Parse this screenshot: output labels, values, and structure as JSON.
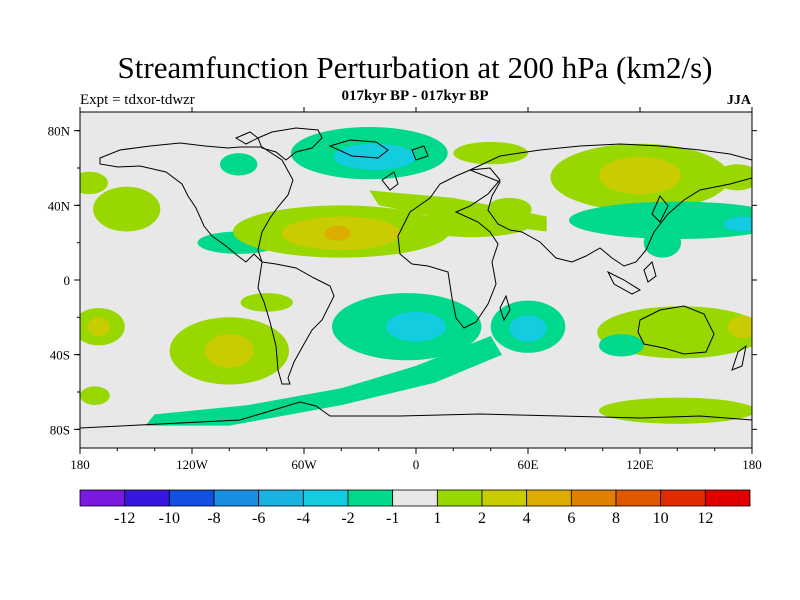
{
  "header": {
    "title": "Streamfunction Perturbation at 200 hPa (km2/s)",
    "subtitle": "017kyr BP - 017kyr BP",
    "experiment": "Expt = tdxor-tdwzr",
    "season": "JJA"
  },
  "chart_data": {
    "type": "heatmap",
    "projection": "equirectangular world map",
    "x": {
      "range": [
        -180,
        180
      ],
      "ticks": [
        -180,
        -120,
        -60,
        0,
        60,
        120,
        180
      ],
      "tick_labels": [
        "180",
        "120W",
        "60W",
        "0",
        "60E",
        "120E",
        "180"
      ]
    },
    "y": {
      "range": [
        -90,
        90
      ],
      "ticks": [
        80,
        40,
        0,
        -40,
        -80
      ],
      "tick_labels": [
        "80N",
        "40N",
        "0",
        "40S",
        "80S"
      ]
    },
    "colorbar": {
      "boundaries": [
        -12,
        -10,
        -8,
        -6,
        -4,
        -2,
        -1,
        1,
        2,
        4,
        6,
        8,
        10,
        12
      ],
      "labels": [
        "-12",
        "-10",
        "-8",
        "-6",
        "-4",
        "-2",
        "-1",
        "1",
        "2",
        "4",
        "6",
        "8",
        "10",
        "12"
      ],
      "colors": [
        "#7a1ae0",
        "#3816e0",
        "#1450e0",
        "#1a8ee0",
        "#1ab2e0",
        "#14cce0",
        "#00d88c",
        "#e8e8e8",
        "#98d800",
        "#c8cc00",
        "#dcac00",
        "#e08000",
        "#e05800",
        "#e02c00",
        "#e00000"
      ]
    },
    "regions": [
      {
        "level": 1,
        "lon": -155,
        "lat": 38,
        "rx": 18,
        "ry": 12
      },
      {
        "level": 1,
        "lon": -175,
        "lat": 52,
        "rx": 10,
        "ry": 6
      },
      {
        "level": 0,
        "lon": -170,
        "lat": 35,
        "rx": 10,
        "ry": 8
      },
      {
        "level": -1,
        "lon": -95,
        "lat": 20,
        "rx": 22,
        "ry": 6
      },
      {
        "level": 1,
        "lon": -40,
        "lat": 26,
        "rx": 58,
        "ry": 14
      },
      {
        "level": 2,
        "lon": -40,
        "lat": 25,
        "rx": 32,
        "ry": 9
      },
      {
        "level": 3,
        "lon": -42,
        "lat": 25,
        "rx": 7,
        "ry": 4
      },
      {
        "level": -1,
        "lon": -25,
        "lat": 68,
        "rx": 42,
        "ry": 14
      },
      {
        "level": -2,
        "lon": -22,
        "lat": 66,
        "rx": 22,
        "ry": 7
      },
      {
        "level": -1,
        "lon": -95,
        "lat": 62,
        "rx": 10,
        "ry": 6
      },
      {
        "level": 1,
        "lon": 40,
        "lat": 68,
        "rx": 20,
        "ry": 6
      },
      {
        "level": 1,
        "lon": 30,
        "lat": 30,
        "rx": 32,
        "ry": 7
      },
      {
        "level": 1,
        "lon": 50,
        "lat": 38,
        "rx": 12,
        "ry": 6
      },
      {
        "level": 1,
        "lon": 120,
        "lat": 55,
        "rx": 48,
        "ry": 18
      },
      {
        "level": 2,
        "lon": 120,
        "lat": 56,
        "rx": 22,
        "ry": 10
      },
      {
        "level": -1,
        "lon": 140,
        "lat": 32,
        "rx": 58,
        "ry": 10
      },
      {
        "level": -2,
        "lon": 175,
        "lat": 30,
        "rx": 10,
        "ry": 4
      },
      {
        "level": -1,
        "lon": 132,
        "lat": 20,
        "rx": 10,
        "ry": 8
      },
      {
        "level": 1,
        "lon": 172,
        "lat": 55,
        "rx": 12,
        "ry": 7
      },
      {
        "level": 1,
        "lon": -80,
        "lat": -12,
        "rx": 14,
        "ry": 5
      },
      {
        "level": 1,
        "lon": -100,
        "lat": -38,
        "rx": 32,
        "ry": 18
      },
      {
        "level": 2,
        "lon": -100,
        "lat": -38,
        "rx": 13,
        "ry": 9
      },
      {
        "level": 1,
        "lon": -170,
        "lat": -25,
        "rx": 14,
        "ry": 10
      },
      {
        "level": 2,
        "lon": -170,
        "lat": -25,
        "rx": 6,
        "ry": 5
      },
      {
        "level": 1,
        "lon": -172,
        "lat": -62,
        "rx": 8,
        "ry": 5
      },
      {
        "level": -1,
        "lon": -5,
        "lat": -25,
        "rx": 40,
        "ry": 18
      },
      {
        "level": -2,
        "lon": 0,
        "lat": -25,
        "rx": 16,
        "ry": 8
      },
      {
        "level": -1,
        "lon": 60,
        "lat": -25,
        "rx": 20,
        "ry": 14
      },
      {
        "level": -2,
        "lon": 60,
        "lat": -26,
        "rx": 10,
        "ry": 7
      },
      {
        "level": 1,
        "lon": 142,
        "lat": -28,
        "rx": 45,
        "ry": 14
      },
      {
        "level": 2,
        "lon": 175,
        "lat": -25,
        "rx": 8,
        "ry": 6
      },
      {
        "level": -1,
        "lon": 110,
        "lat": -35,
        "rx": 12,
        "ry": 6
      },
      {
        "level": 1,
        "lon": 140,
        "lat": -70,
        "rx": 42,
        "ry": 7
      }
    ],
    "bands": [
      {
        "level": -1,
        "points": [
          [
            -140,
            -72
          ],
          [
            -90,
            -67
          ],
          [
            -40,
            -58
          ],
          [
            0,
            -46
          ],
          [
            40,
            -30
          ],
          [
            46,
            -40
          ],
          [
            10,
            -55
          ],
          [
            -40,
            -67
          ],
          [
            -100,
            -78
          ],
          [
            -145,
            -78
          ]
        ]
      },
      {
        "level": -1,
        "points": [
          [
            -55,
            30
          ],
          [
            -20,
            18
          ],
          [
            10,
            24
          ],
          [
            0,
            34
          ],
          [
            -30,
            38
          ]
        ]
      },
      {
        "level": 1,
        "points": [
          [
            -25,
            48
          ],
          [
            20,
            44
          ],
          [
            70,
            34
          ],
          [
            70,
            26
          ],
          [
            20,
            32
          ],
          [
            -20,
            40
          ]
        ]
      }
    ]
  }
}
